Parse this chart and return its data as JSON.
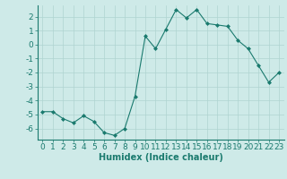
{
  "x": [
    0,
    1,
    2,
    3,
    4,
    5,
    6,
    7,
    8,
    9,
    10,
    11,
    12,
    13,
    14,
    15,
    16,
    17,
    18,
    19,
    20,
    21,
    22,
    23
  ],
  "y": [
    -4.8,
    -4.8,
    -5.3,
    -5.6,
    -5.1,
    -5.5,
    -6.3,
    -6.5,
    -6.0,
    -3.7,
    0.6,
    -0.3,
    1.1,
    2.5,
    1.9,
    2.5,
    1.5,
    1.4,
    1.3,
    0.3,
    -0.3,
    -1.5,
    -2.7,
    -2.0
  ],
  "xlabel": "Humidex (Indice chaleur)",
  "ylim": [
    -6.8,
    2.8
  ],
  "xlim": [
    -0.5,
    23.5
  ],
  "yticks": [
    -6,
    -5,
    -4,
    -3,
    -2,
    -1,
    0,
    1,
    2
  ],
  "xticks": [
    0,
    1,
    2,
    3,
    4,
    5,
    6,
    7,
    8,
    9,
    10,
    11,
    12,
    13,
    14,
    15,
    16,
    17,
    18,
    19,
    20,
    21,
    22,
    23
  ],
  "line_color": "#1a7a6e",
  "marker": "D",
  "marker_size": 2.0,
  "bg_color": "#ceeae8",
  "grid_color": "#afd4d1",
  "xlabel_fontsize": 7,
  "tick_fontsize": 6.5
}
